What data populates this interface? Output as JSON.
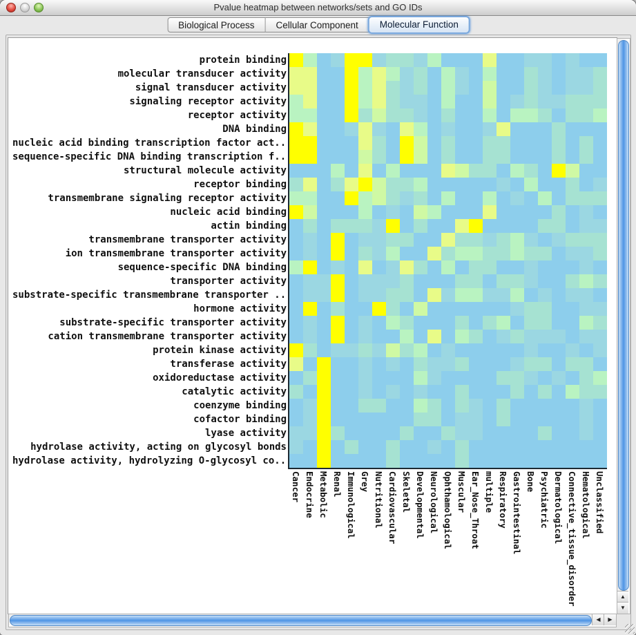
{
  "window": {
    "title": "Pvalue heatmap between networks/sets and GO IDs",
    "traffic_lights": [
      "close-button",
      "minimize-button-disabled",
      "zoom-button"
    ]
  },
  "tabs": [
    {
      "label": "Biological Process",
      "selected": false
    },
    {
      "label": "Cellular Component",
      "selected": false
    },
    {
      "label": "Molecular Function",
      "selected": true
    }
  ],
  "scrollbars": {
    "up_arrow": "▲",
    "down_arrow": "▼",
    "left_arrow": "◀",
    "right_arrow": "▶"
  },
  "chart_data": {
    "type": "heatmap",
    "title": "Pvalue heatmap between networks/sets and GO IDs",
    "rows": [
      "protein binding",
      "molecular transducer activity",
      "signal transducer activity",
      "signaling receptor activity",
      "receptor activity",
      "DNA binding",
      "nucleic acid binding transcription factor act...",
      "sequence-specific DNA binding transcription f...",
      "structural molecule activity",
      "receptor binding",
      "transmembrane signaling receptor activity",
      "nucleic acid binding",
      "actin binding",
      "transmembrane transporter activity",
      "ion transmembrane transporter activity",
      "sequence-specific DNA binding",
      "transporter activity",
      "substrate-specific transmembrane transporter ...",
      "hormone activity",
      "substrate-specific transporter activity",
      "cation transmembrane transporter activity",
      "protein kinase activity",
      "transferase activity",
      "oxidoreductase activity",
      "catalytic activity",
      "coenzyme binding",
      "cofactor binding",
      "lyase activity",
      "hydrolase activity, acting on glycosyl bonds",
      "hydrolase activity, hydrolyzing O-glycosyl co..."
    ],
    "cols": [
      "Cancer",
      "Endocrine",
      "Metabolic",
      "Renal",
      "Immunological",
      "Grey",
      "Nutritional",
      "Cardiovascular",
      "Skeletal",
      "Developmental",
      "Neurological",
      "Ophthamological",
      "Muscular",
      "Ear_Nose_Throat",
      "multiple",
      "Respiratory",
      "Gastrointestinal",
      "Bone",
      "Psychiatric",
      "Dermatological",
      "Connective_tissue_disorder",
      "Hematological",
      "Unclassified"
    ],
    "palette": [
      "#8DCEEC",
      "#9BD7E2",
      "#A6E2D2",
      "#B9F3C1",
      "#CFF9A4",
      "#E8FB88",
      "#FFFF00"
    ],
    "palette_note": "quantized significance level 0=low(light blue) to 6=high(yellow)",
    "values": [
      [
        6,
        3,
        0,
        1,
        6,
        6,
        1,
        2,
        2,
        1,
        3,
        0,
        0,
        0,
        5,
        0,
        0,
        1,
        1,
        0,
        1,
        0,
        0
      ],
      [
        5,
        5,
        0,
        0,
        6,
        3,
        5,
        3,
        1,
        2,
        0,
        3,
        1,
        0,
        3,
        0,
        0,
        2,
        1,
        0,
        1,
        1,
        2
      ],
      [
        5,
        5,
        0,
        0,
        6,
        3,
        5,
        2,
        1,
        2,
        0,
        3,
        1,
        0,
        4,
        0,
        0,
        2,
        1,
        0,
        1,
        1,
        2
      ],
      [
        3,
        5,
        0,
        0,
        6,
        3,
        5,
        2,
        1,
        1,
        0,
        3,
        0,
        0,
        4,
        0,
        1,
        2,
        1,
        1,
        2,
        2,
        2
      ],
      [
        3,
        3,
        0,
        0,
        6,
        2,
        4,
        2,
        2,
        1,
        0,
        2,
        0,
        0,
        3,
        0,
        3,
        3,
        2,
        0,
        2,
        2,
        3
      ],
      [
        6,
        5,
        0,
        0,
        1,
        5,
        1,
        0,
        5,
        3,
        0,
        1,
        0,
        0,
        1,
        5,
        0,
        0,
        0,
        2,
        0,
        0,
        0
      ],
      [
        6,
        6,
        0,
        0,
        0,
        5,
        2,
        0,
        6,
        4,
        0,
        2,
        0,
        0,
        2,
        2,
        0,
        0,
        0,
        2,
        0,
        2,
        0
      ],
      [
        6,
        6,
        0,
        0,
        0,
        4,
        2,
        0,
        6,
        4,
        0,
        2,
        0,
        0,
        2,
        2,
        0,
        0,
        0,
        2,
        0,
        2,
        0
      ],
      [
        0,
        0,
        0,
        3,
        0,
        5,
        0,
        3,
        0,
        0,
        0,
        5,
        4,
        2,
        2,
        0,
        3,
        2,
        0,
        6,
        4,
        0,
        0
      ],
      [
        2,
        5,
        0,
        2,
        5,
        6,
        4,
        2,
        2,
        3,
        0,
        0,
        0,
        0,
        0,
        1,
        0,
        3,
        0,
        0,
        2,
        0,
        1
      ],
      [
        3,
        3,
        0,
        0,
        6,
        3,
        4,
        2,
        1,
        2,
        0,
        3,
        0,
        0,
        3,
        0,
        1,
        0,
        3,
        0,
        2,
        2,
        2
      ],
      [
        6,
        4,
        0,
        0,
        0,
        3,
        0,
        1,
        0,
        4,
        3,
        0,
        0,
        0,
        5,
        0,
        0,
        0,
        0,
        2,
        0,
        1,
        0
      ],
      [
        0,
        2,
        0,
        2,
        2,
        2,
        1,
        6,
        0,
        2,
        0,
        0,
        5,
        6,
        0,
        0,
        0,
        0,
        2,
        2,
        0,
        1,
        1
      ],
      [
        0,
        1,
        0,
        6,
        0,
        1,
        1,
        2,
        2,
        0,
        0,
        5,
        2,
        2,
        1,
        2,
        3,
        1,
        0,
        1,
        2,
        2,
        2
      ],
      [
        0,
        1,
        0,
        6,
        0,
        2,
        1,
        3,
        0,
        0,
        5,
        2,
        3,
        3,
        2,
        2,
        3,
        2,
        2,
        0,
        1,
        1,
        2
      ],
      [
        3,
        6,
        0,
        1,
        0,
        5,
        0,
        1,
        5,
        2,
        0,
        3,
        0,
        2,
        2,
        0,
        0,
        1,
        0,
        0,
        0,
        1,
        0
      ],
      [
        0,
        1,
        1,
        6,
        0,
        1,
        1,
        1,
        2,
        0,
        0,
        0,
        2,
        2,
        0,
        2,
        2,
        1,
        0,
        0,
        2,
        3,
        2
      ],
      [
        0,
        1,
        1,
        6,
        0,
        1,
        1,
        2,
        2,
        0,
        5,
        1,
        3,
        3,
        1,
        1,
        3,
        0,
        1,
        0,
        1,
        1,
        0
      ],
      [
        0,
        6,
        0,
        2,
        0,
        0,
        6,
        2,
        0,
        4,
        0,
        0,
        0,
        0,
        0,
        0,
        1,
        2,
        2,
        0,
        0,
        1,
        1
      ],
      [
        0,
        1,
        0,
        6,
        0,
        1,
        0,
        3,
        2,
        0,
        0,
        0,
        2,
        0,
        2,
        3,
        0,
        2,
        2,
        0,
        0,
        3,
        2
      ],
      [
        0,
        1,
        0,
        6,
        0,
        1,
        0,
        0,
        3,
        0,
        5,
        0,
        3,
        2,
        0,
        1,
        2,
        1,
        1,
        1,
        0,
        1,
        1
      ],
      [
        6,
        2,
        0,
        1,
        1,
        2,
        1,
        4,
        2,
        3,
        0,
        1,
        0,
        0,
        0,
        0,
        0,
        1,
        0,
        0,
        1,
        0,
        1
      ],
      [
        5,
        0,
        6,
        0,
        0,
        1,
        0,
        1,
        0,
        2,
        1,
        1,
        2,
        0,
        0,
        0,
        1,
        2,
        2,
        0,
        2,
        2,
        0
      ],
      [
        0,
        2,
        6,
        0,
        0,
        1,
        0,
        0,
        0,
        3,
        1,
        0,
        0,
        0,
        0,
        2,
        2,
        1,
        0,
        1,
        0,
        2,
        3
      ],
      [
        2,
        0,
        6,
        0,
        0,
        1,
        0,
        1,
        0,
        1,
        0,
        0,
        2,
        0,
        0,
        0,
        2,
        0,
        2,
        0,
        3,
        2,
        2
      ],
      [
        0,
        1,
        6,
        0,
        0,
        2,
        2,
        0,
        0,
        3,
        2,
        0,
        2,
        1,
        0,
        2,
        0,
        0,
        0,
        0,
        0,
        1,
        0
      ],
      [
        0,
        1,
        6,
        0,
        0,
        0,
        0,
        0,
        0,
        2,
        2,
        0,
        1,
        1,
        0,
        2,
        0,
        0,
        0,
        0,
        0,
        1,
        0
      ],
      [
        1,
        1,
        6,
        2,
        0,
        0,
        0,
        0,
        2,
        0,
        0,
        2,
        1,
        1,
        0,
        0,
        0,
        0,
        2,
        0,
        0,
        1,
        0
      ],
      [
        1,
        0,
        6,
        0,
        2,
        0,
        0,
        2,
        0,
        0,
        1,
        0,
        2,
        0,
        0,
        0,
        0,
        0,
        0,
        0,
        0,
        0,
        0
      ],
      [
        0,
        0,
        6,
        0,
        0,
        0,
        0,
        2,
        0,
        0,
        0,
        0,
        2,
        0,
        0,
        0,
        0,
        0,
        0,
        0,
        0,
        0,
        0
      ]
    ]
  }
}
